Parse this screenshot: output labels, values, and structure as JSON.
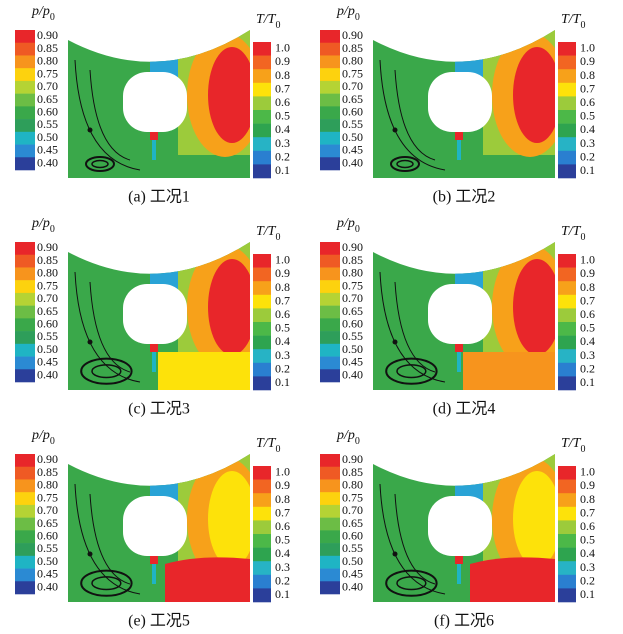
{
  "figure": {
    "pressure_scale": {
      "label": "p/p",
      "label_sub": "0",
      "ticks": [
        "0.90",
        "0.85",
        "0.80",
        "0.75",
        "0.70",
        "0.65",
        "0.60",
        "0.55",
        "0.50",
        "0.45",
        "0.40"
      ]
    },
    "temperature_scale": {
      "label": "T/T",
      "label_sub": "0",
      "ticks": [
        "1.0",
        "0.9",
        "0.8",
        "0.7",
        "0.6",
        "0.5",
        "0.4",
        "0.3",
        "0.2",
        "0.1"
      ]
    },
    "panels": [
      {
        "caption": "(a) 工况1"
      },
      {
        "caption": "(b) 工况2"
      },
      {
        "caption": "(c) 工况3"
      },
      {
        "caption": "(d) 工况4"
      },
      {
        "caption": "(e) 工况5"
      },
      {
        "caption": "(f) 工况6"
      }
    ]
  }
}
